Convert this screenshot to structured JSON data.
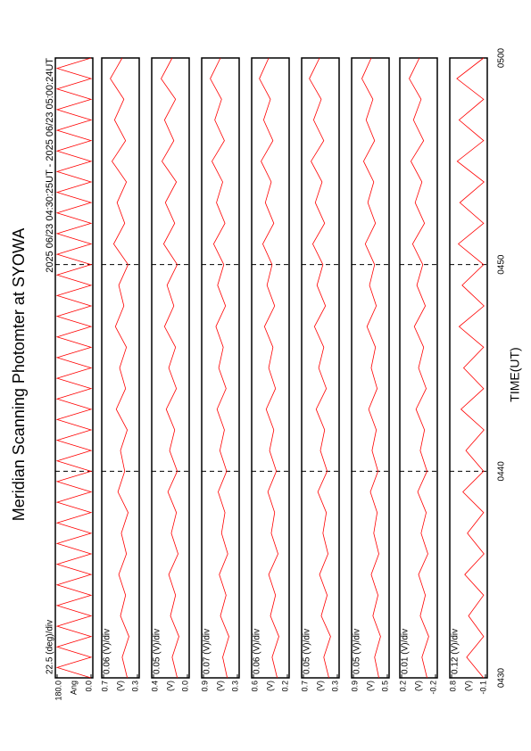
{
  "chart_data": {
    "type": "line",
    "title": "Meridian Scanning Photomter at SYOWA",
    "subtitle": "2025 06/23 04:30:25UT - 2025 06/23 05:00:24UT",
    "xlabel": "TIME(UT)",
    "xlim": [
      270,
      300
    ],
    "xticks": [
      {
        "value": 270,
        "label": "0430"
      },
      {
        "value": 280,
        "label": "0440"
      },
      {
        "value": 290,
        "label": "0450"
      },
      {
        "value": 300,
        "label": "0500"
      }
    ],
    "grid": true,
    "color": "#ff0000",
    "x": [
      270,
      271,
      272,
      273,
      274,
      275,
      276,
      277,
      278,
      279,
      280,
      281,
      282,
      283,
      284,
      285,
      286,
      287,
      288,
      289,
      290,
      291,
      292,
      293,
      294,
      295,
      296,
      297,
      298,
      299,
      300
    ],
    "panels": [
      {
        "scale_label": "22.5 (deg)/div",
        "ylim": [
          0,
          180
        ],
        "yticks": [
          {
            "value": 0,
            "label": "0.0"
          },
          {
            "value": 180,
            "label": "180.0"
          }
        ],
        "ylabel": "Ang",
        "x": [
          270,
          270.5,
          271,
          271.5,
          272,
          272.5,
          273,
          273.5,
          274,
          274.5,
          275,
          275.5,
          276,
          276.5,
          277,
          277.5,
          278,
          278.5,
          279,
          279.5,
          280,
          280.5,
          281,
          281.5,
          282,
          282.5,
          283,
          283.5,
          284,
          284.5,
          285,
          285.5,
          286,
          286.5,
          287,
          287.5,
          288,
          288.5,
          289,
          289.5,
          290,
          290.5,
          291,
          291.5,
          292,
          292.5,
          293,
          293.5,
          294,
          294.5,
          295,
          295.5,
          296,
          296.5,
          297,
          297.5,
          298,
          298.5,
          299,
          299.5,
          300
        ],
        "values": [
          0,
          180,
          0,
          180,
          0,
          180,
          0,
          180,
          0,
          180,
          0,
          180,
          0,
          180,
          0,
          180,
          0,
          180,
          0,
          180,
          0,
          180,
          0,
          180,
          0,
          180,
          0,
          180,
          0,
          180,
          0,
          180,
          0,
          180,
          0,
          180,
          0,
          180,
          0,
          180,
          0,
          180,
          0,
          180,
          0,
          180,
          0,
          180,
          0,
          180,
          0,
          180,
          0,
          180,
          0,
          180,
          0,
          180,
          0,
          180,
          0
        ]
      },
      {
        "scale_label": "0.06 (V)/div",
        "ylim": [
          0.3,
          0.7
        ],
        "yticks": [
          0.3,
          0.7
        ],
        "ylabel": "(V)",
        "values": [
          0.42,
          0.48,
          0.4,
          0.5,
          0.44,
          0.52,
          0.43,
          0.49,
          0.41,
          0.53,
          0.45,
          0.5,
          0.42,
          0.55,
          0.44,
          0.51,
          0.43,
          0.56,
          0.46,
          0.52,
          0.41,
          0.58,
          0.45,
          0.54,
          0.43,
          0.6,
          0.44,
          0.57,
          0.46,
          0.62,
          0.48
        ]
      },
      {
        "scale_label": "0.05 (V)/div",
        "ylim": [
          0,
          0.4
        ],
        "yticks": [
          {
            "value": 0,
            "label": "0.0"
          },
          0.4
        ],
        "ylabel": "(V)",
        "values": [
          0.12,
          0.18,
          0.1,
          0.2,
          0.14,
          0.22,
          0.11,
          0.19,
          0.13,
          0.23,
          0.12,
          0.21,
          0.15,
          0.25,
          0.13,
          0.22,
          0.14,
          0.27,
          0.16,
          0.24,
          0.12,
          0.28,
          0.15,
          0.26,
          0.13,
          0.3,
          0.16,
          0.27,
          0.14,
          0.31,
          0.18
        ]
      },
      {
        "scale_label": "0.07 (V)/div",
        "ylim": [
          0.3,
          0.9
        ],
        "yticks": [
          0.3,
          0.9
        ],
        "ylabel": "(V)",
        "values": [
          0.48,
          0.56,
          0.45,
          0.6,
          0.5,
          0.62,
          0.47,
          0.58,
          0.52,
          0.64,
          0.49,
          0.61,
          0.53,
          0.66,
          0.5,
          0.63,
          0.55,
          0.68,
          0.51,
          0.65,
          0.54,
          0.72,
          0.52,
          0.67,
          0.56,
          0.75,
          0.53,
          0.7,
          0.58,
          0.78,
          0.6
        ]
      },
      {
        "scale_label": "0.06 (V)/div",
        "ylim": [
          0.2,
          0.6
        ],
        "yticks": [
          0.2,
          0.6
        ],
        "ylabel": "(V)",
        "values": [
          0.32,
          0.38,
          0.3,
          0.4,
          0.34,
          0.42,
          0.31,
          0.39,
          0.35,
          0.43,
          0.33,
          0.41,
          0.36,
          0.45,
          0.34,
          0.42,
          0.37,
          0.47,
          0.35,
          0.44,
          0.38,
          0.49,
          0.36,
          0.46,
          0.39,
          0.51,
          0.37,
          0.48,
          0.4,
          0.53,
          0.42
        ]
      },
      {
        "scale_label": "0.05 (V)/div",
        "ylim": [
          0.3,
          0.7
        ],
        "yticks": [
          0.3,
          0.7
        ],
        "ylabel": "(V)",
        "values": [
          0.4,
          0.46,
          0.38,
          0.49,
          0.42,
          0.51,
          0.41,
          0.47,
          0.43,
          0.53,
          0.42,
          0.5,
          0.45,
          0.55,
          0.43,
          0.52,
          0.46,
          0.57,
          0.44,
          0.54,
          0.47,
          0.59,
          0.45,
          0.56,
          0.48,
          0.61,
          0.46,
          0.58,
          0.49,
          0.63,
          0.51
        ]
      },
      {
        "scale_label": "0.05 (V)/div",
        "ylim": [
          0.5,
          0.9
        ],
        "yticks": [
          0.5,
          0.9
        ],
        "ylabel": "(V)",
        "values": [
          0.6,
          0.65,
          0.58,
          0.67,
          0.61,
          0.69,
          0.6,
          0.66,
          0.62,
          0.7,
          0.61,
          0.68,
          0.63,
          0.72,
          0.62,
          0.69,
          0.64,
          0.74,
          0.63,
          0.71,
          0.65,
          0.76,
          0.64,
          0.73,
          0.66,
          0.78,
          0.65,
          0.75,
          0.67,
          0.8,
          0.69
        ]
      },
      {
        "scale_label": "0.01 (V)/div",
        "ylim": [
          -0.2,
          0.2
        ],
        "yticks": [
          -0.2,
          0.2
        ],
        "ylabel": "(V)",
        "values": [
          -0.1,
          -0.04,
          -0.12,
          -0.02,
          -0.08,
          0.0,
          -0.11,
          -0.03,
          -0.09,
          0.01,
          -0.1,
          -0.02,
          -0.07,
          0.03,
          -0.09,
          0.0,
          -0.06,
          0.05,
          -0.08,
          0.02,
          -0.05,
          0.07,
          -0.07,
          0.04,
          -0.04,
          0.09,
          -0.06,
          0.06,
          -0.03,
          0.11,
          -0.01
        ]
      },
      {
        "scale_label": "0.12 (V)/div",
        "ylim": [
          -0.1,
          0.8
        ],
        "yticks": [
          -0.1,
          0.8
        ],
        "ylabel": "(V)",
        "values": [
          -0.05,
          0.4,
          -0.05,
          0.35,
          -0.05,
          0.45,
          -0.06,
          0.38,
          -0.05,
          0.5,
          -0.05,
          0.42,
          -0.06,
          0.55,
          -0.05,
          0.48,
          -0.05,
          0.6,
          -0.06,
          0.52,
          -0.05,
          0.62,
          -0.05,
          0.58,
          -0.06,
          0.65,
          -0.05,
          0.6,
          -0.05,
          0.66,
          -0.05
        ]
      }
    ]
  }
}
